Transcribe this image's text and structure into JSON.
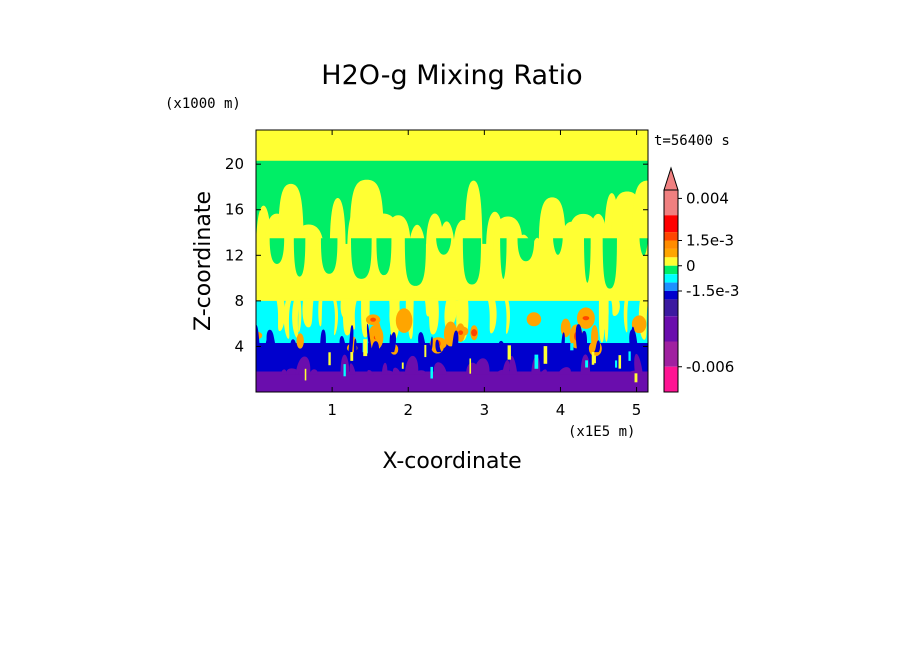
{
  "chart_data": {
    "type": "heatmap",
    "title": "H2O-g Mixing Ratio",
    "xlabel": "X-coordinate",
    "ylabel": "Z-coordinate",
    "x_scale_label": "(x1E5 m)",
    "y_scale_label": "(x1000 m)",
    "time_label": "t=56400 s",
    "xlim": [
      0,
      5.15
    ],
    "ylim": [
      0,
      23
    ],
    "x_ticks": [
      1,
      2,
      3,
      4,
      5
    ],
    "x_tick_labels": [
      "1",
      "2",
      "3",
      "4",
      "5"
    ],
    "y_ticks": [
      4,
      8,
      12,
      16,
      20
    ],
    "y_tick_labels": [
      "4",
      "8",
      "12",
      "16",
      "20"
    ],
    "colorbar": {
      "labels": [
        {
          "text": "0.004",
          "value": 0.004
        },
        {
          "text": "1.5e-3",
          "value": 0.0015
        },
        {
          "text": "0",
          "value": 0
        },
        {
          "text": "-1.5e-3",
          "value": -0.0015
        },
        {
          "text": "-0.006",
          "value": -0.006
        }
      ],
      "levels_from_top": [
        {
          "upper": 0.0045,
          "color": "#f08080"
        },
        {
          "upper": 0.003,
          "color": "#ff0000"
        },
        {
          "upper": 0.002,
          "color": "#ff4500"
        },
        {
          "upper": 0.0015,
          "color": "#ff8c00"
        },
        {
          "upper": 0.001,
          "color": "#ffa500"
        },
        {
          "upper": 0.0005,
          "color": "#ffff33"
        },
        {
          "upper": 0.0,
          "color": "#00ee66"
        },
        {
          "upper": -0.0005,
          "color": "#00ffff"
        },
        {
          "upper": -0.001,
          "color": "#1e90ff"
        },
        {
          "upper": -0.0015,
          "color": "#0000cd"
        },
        {
          "upper": -0.002,
          "color": "#3c1aa0"
        },
        {
          "upper": -0.003,
          "color": "#6a0dad"
        },
        {
          "upper": -0.0045,
          "color": "#a020a0"
        },
        {
          "upper": -0.006,
          "color": "#ff1493"
        }
      ]
    },
    "layers": [
      {
        "name": "upper-yellow-band",
        "z_range": [
          20,
          23
        ],
        "color": "#ffff33"
      },
      {
        "name": "upper-green",
        "z_range": [
          12,
          20
        ],
        "color": "#00ee66"
      },
      {
        "name": "mid-yellow",
        "z_range": [
          8,
          16
        ],
        "color": "#ffff33"
      },
      {
        "name": "cyan-layer",
        "z_range": [
          4,
          8
        ],
        "color": "#00ffff"
      },
      {
        "name": "orange-plumes",
        "z_range": [
          3,
          7
        ],
        "color": "#ffa500"
      },
      {
        "name": "blue-layer",
        "z_range": [
          1,
          4
        ],
        "color": "#0000cd"
      },
      {
        "name": "purple-base",
        "z_range": [
          0,
          2.5
        ],
        "color": "#6a0dad"
      }
    ]
  }
}
